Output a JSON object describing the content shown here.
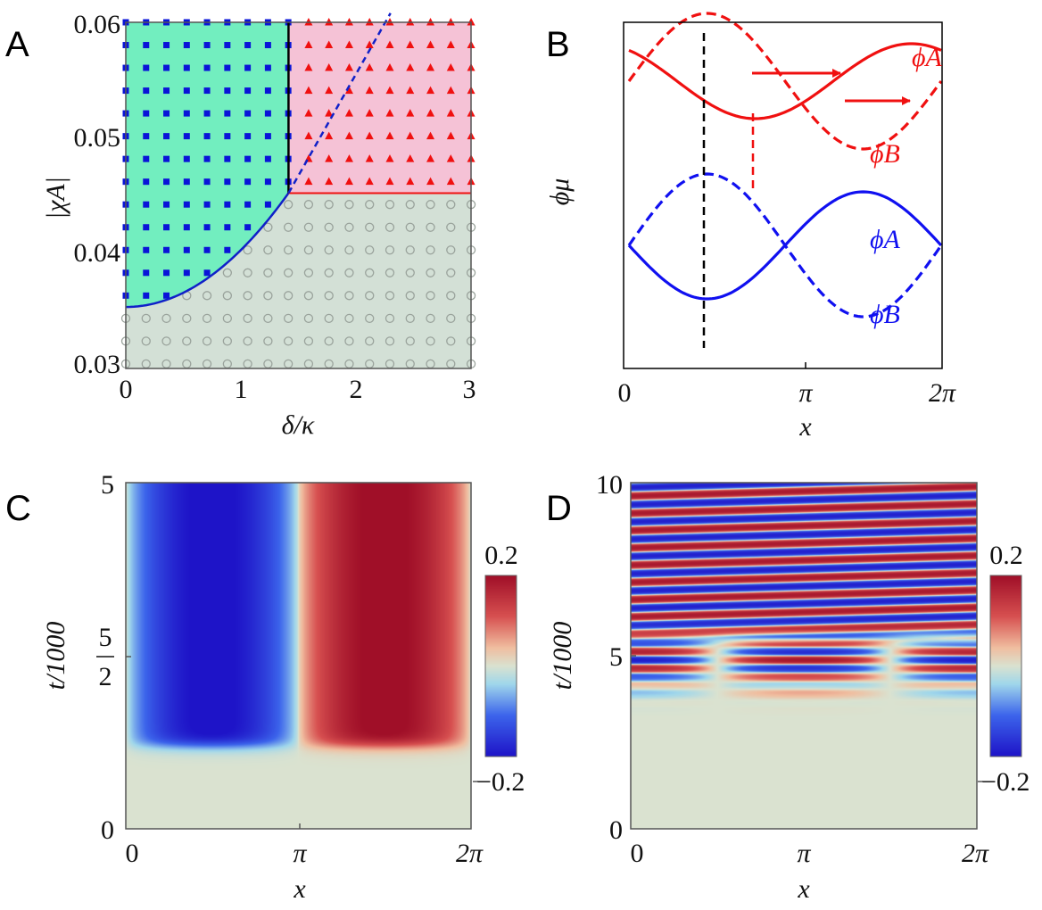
{
  "panels": {
    "A": {
      "label": "A"
    },
    "B": {
      "label": "B"
    },
    "C": {
      "label": "C"
    },
    "D": {
      "label": "D"
    }
  },
  "chart_data": [
    {
      "panel": "A",
      "type": "scatter",
      "xlabel": "δ/κ",
      "ylabel": "|χA|",
      "xlim": [
        0,
        3
      ],
      "ylim": [
        0.0296,
        0.06
      ],
      "xticks": [
        "0",
        "1",
        "2",
        "3"
      ],
      "yticks": [
        "0.03",
        "0.04",
        "0.05",
        "0.06"
      ],
      "xtick_values": [
        0,
        1,
        2,
        3
      ],
      "ytick_values": [
        0.03,
        0.04,
        0.05,
        0.06
      ],
      "colors": {
        "region_squares": "#72eebf",
        "region_triangles": "#f5c2d6",
        "region_circles": "#d3e0d6",
        "squares": "#0a14d8",
        "triangles": "#f01010",
        "circles": "#9aa39c"
      },
      "marker_grid": {
        "x_start": 0,
        "x_step": 0.1765,
        "y_start": 0.03,
        "y_step": 0.002
      },
      "boundaries": {
        "vertical_black": {
          "x": 1.414,
          "y_range": [
            0.045,
            0.06
          ]
        },
        "horizontal_red": {
          "y": 0.045,
          "x_range": [
            1.414,
            3
          ]
        },
        "blue_parabola": {
          "points": [
            [
              0,
              0.035
            ],
            [
              0.5,
              0.03625
            ],
            [
              1.0,
              0.04
            ],
            [
              1.414,
              0.045
            ]
          ]
        },
        "blue_dashed": {
          "points": [
            [
              1.414,
              0.045
            ],
            [
              2.3,
              0.0608
            ]
          ]
        }
      }
    },
    {
      "panel": "B",
      "type": "line",
      "xlabel": "x",
      "ylabel": "ϕμ",
      "xlim": [
        0,
        6.2832
      ],
      "xticks": [
        "0",
        "π",
        "2π"
      ],
      "xtick_values": [
        0,
        3.1416,
        6.2832
      ],
      "series": [
        {
          "name": "ϕA",
          "group": "red",
          "color": "#f01010",
          "style": "solid",
          "center": 0.62,
          "amplitude": 0.21,
          "min_at_x": 2.54
        },
        {
          "name": "ϕB",
          "group": "red",
          "color": "#f01010",
          "style": "dashed",
          "center": 0.62,
          "amplitude": 0.38,
          "max_at_x": 1.5708
        },
        {
          "name": "ϕA",
          "group": "blue",
          "color": "#1010f0",
          "style": "solid",
          "center": -0.3,
          "amplitude": 0.3,
          "min_at_x": 1.5708
        },
        {
          "name": "ϕB",
          "group": "blue",
          "color": "#1010f0",
          "style": "dashed",
          "center": -0.3,
          "amplitude": 0.4,
          "max_at_x": 1.5708
        }
      ],
      "annotations": {
        "black_dashed_x": 1.5708,
        "red_dashed_x": 2.54,
        "arrows": "rightward"
      }
    },
    {
      "panel": "C",
      "type": "heatmap",
      "xlabel": "x",
      "ylabel": "t/1000",
      "xlim": [
        0,
        6.2832
      ],
      "ylim": [
        0,
        5
      ],
      "xticks": [
        "0",
        "π",
        "2π"
      ],
      "yticks": [
        "0",
        "5",
        "5"
      ],
      "ytick_fraction_denominator": "2",
      "colorbar": {
        "min": -0.2,
        "max": 0.2,
        "min_label": "−0.2",
        "max_label": "0.2"
      },
      "onset_t": 1.2,
      "pattern": "stationary −0.2·sin(x) after onset"
    },
    {
      "panel": "D",
      "type": "heatmap",
      "xlabel": "x",
      "ylabel": "t/1000",
      "xlim": [
        0,
        6.2832
      ],
      "ylim": [
        0,
        10
      ],
      "xticks": [
        "0",
        "π",
        "2π"
      ],
      "yticks": [
        "0",
        "5",
        "10"
      ],
      "colorbar": {
        "min": -0.2,
        "max": 0.2,
        "min_label": "−0.2",
        "max_label": "0.2"
      },
      "onset_t": 4.0,
      "pattern": "traveling wave stripes after t≈5.5, period ≈0.5"
    }
  ]
}
